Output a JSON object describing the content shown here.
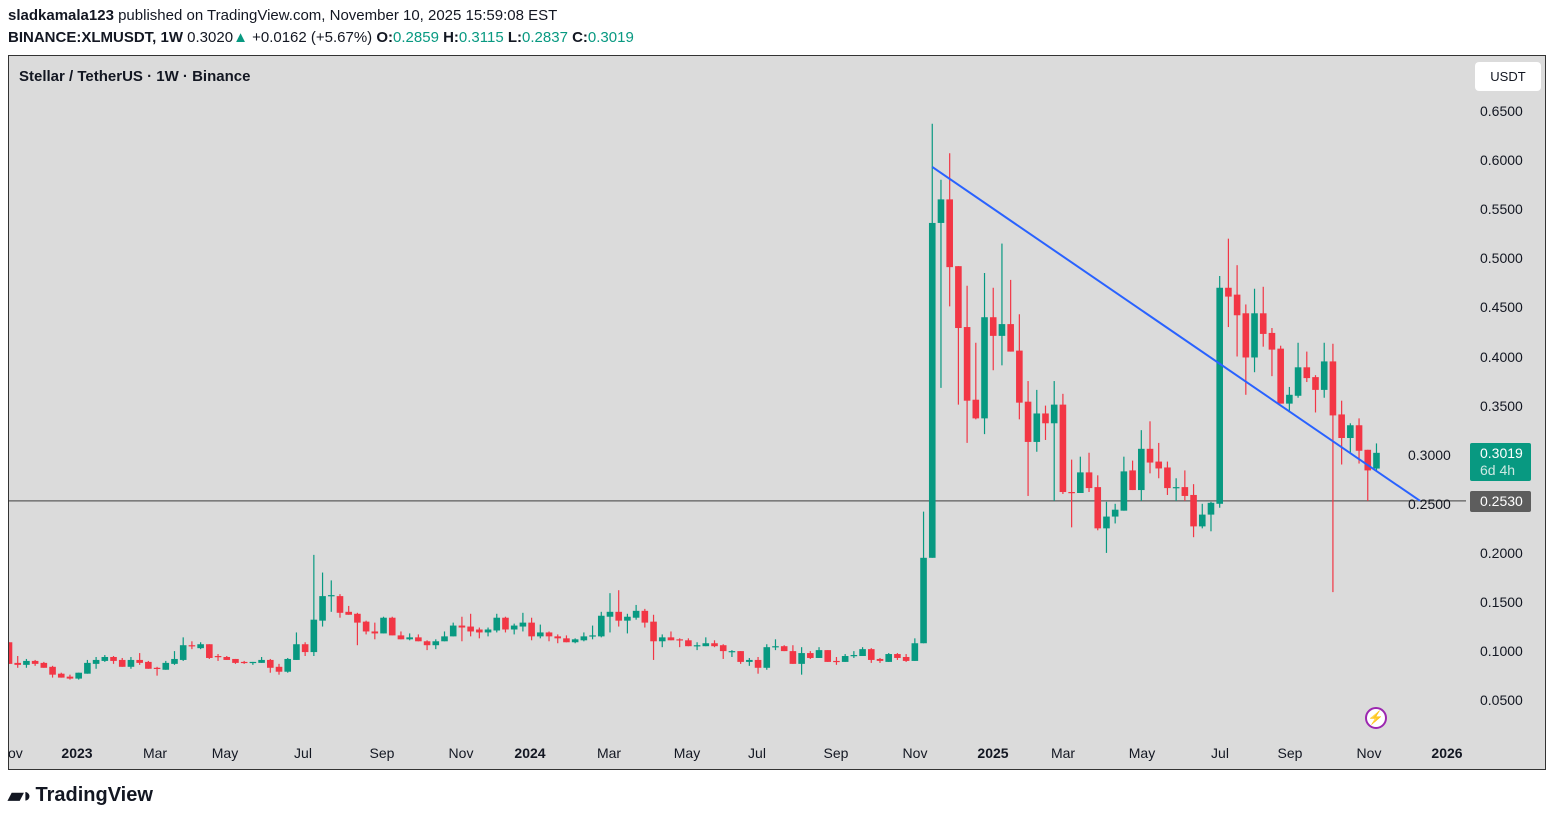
{
  "header": {
    "author": "sladkamala123",
    "published": "published on TradingView.com, November 10, 2025 15:59:08 EST",
    "symbol": "BINANCE:XLMUSDT, 1W",
    "price": "0.3020",
    "change": "+0.0162 (+5.67%)",
    "o_label": "O:",
    "o": "0.2859",
    "h_label": "H:",
    "h": "0.3115",
    "l_label": "L:",
    "l": "0.2837",
    "c_label": "C:",
    "c": "0.3019"
  },
  "chart": {
    "title": "Stellar / TetherUS · 1W · Binance",
    "currency_button": "USDT",
    "last_price": "0.3019",
    "countdown": "6d 4h",
    "hline_label": "0.2530",
    "logo": "TradingView",
    "colors": {
      "up": "#089981",
      "down": "#f23645",
      "trendline": "#2962ff",
      "background": "#dbdbdb",
      "hline": "#5d5d5d"
    }
  },
  "chart_data": {
    "type": "candlestick",
    "interval": "1W",
    "ylim": [
      0.02,
      0.68
    ],
    "y_ticks": [
      "0.6500",
      "0.6000",
      "0.5500",
      "0.5000",
      "0.4500",
      "0.4000",
      "0.3500",
      "0.3000",
      "0.2500",
      "0.2000",
      "0.1500",
      "0.1000",
      "0.0500"
    ],
    "x_ticks": [
      {
        "label": "ov",
        "year": false
      },
      {
        "label": "2023",
        "year": true
      },
      {
        "label": "Mar",
        "year": false
      },
      {
        "label": "May",
        "year": false
      },
      {
        "label": "Jul",
        "year": false
      },
      {
        "label": "Sep",
        "year": false
      },
      {
        "label": "Nov",
        "year": false
      },
      {
        "label": "2024",
        "year": true
      },
      {
        "label": "Mar",
        "year": false
      },
      {
        "label": "May",
        "year": false
      },
      {
        "label": "Jul",
        "year": false
      },
      {
        "label": "Sep",
        "year": false
      },
      {
        "label": "Nov",
        "year": false
      },
      {
        "label": "2025",
        "year": true
      },
      {
        "label": "Mar",
        "year": false
      },
      {
        "label": "May",
        "year": false
      },
      {
        "label": "Jul",
        "year": false
      },
      {
        "label": "Sep",
        "year": false
      },
      {
        "label": "Nov",
        "year": false
      },
      {
        "label": "2026",
        "year": true
      }
    ],
    "horizontal_line": 0.253,
    "trendline": {
      "from": {
        "date": "2024-11-18",
        "price": 0.593
      },
      "to": {
        "date": "2025-12-15",
        "price": 0.253
      }
    },
    "ohlc": [
      [
        0.109,
        0.109,
        0.087,
        0.087
      ],
      [
        0.088,
        0.095,
        0.083,
        0.086
      ],
      [
        0.086,
        0.092,
        0.083,
        0.09
      ],
      [
        0.09,
        0.091,
        0.085,
        0.087
      ],
      [
        0.088,
        0.089,
        0.083,
        0.083
      ],
      [
        0.084,
        0.085,
        0.073,
        0.076
      ],
      [
        0.077,
        0.078,
        0.073,
        0.073
      ],
      [
        0.074,
        0.076,
        0.071,
        0.072
      ],
      [
        0.072,
        0.078,
        0.071,
        0.078
      ],
      [
        0.077,
        0.091,
        0.077,
        0.088
      ],
      [
        0.087,
        0.094,
        0.082,
        0.091
      ],
      [
        0.09,
        0.096,
        0.089,
        0.094
      ],
      [
        0.094,
        0.095,
        0.087,
        0.09
      ],
      [
        0.091,
        0.093,
        0.084,
        0.084
      ],
      [
        0.084,
        0.094,
        0.082,
        0.091
      ],
      [
        0.091,
        0.098,
        0.086,
        0.088
      ],
      [
        0.089,
        0.09,
        0.082,
        0.082
      ],
      [
        0.083,
        0.084,
        0.075,
        0.082
      ],
      [
        0.081,
        0.09,
        0.081,
        0.088
      ],
      [
        0.087,
        0.1,
        0.086,
        0.092
      ],
      [
        0.091,
        0.114,
        0.09,
        0.106
      ],
      [
        0.106,
        0.11,
        0.102,
        0.105
      ],
      [
        0.103,
        0.109,
        0.102,
        0.107
      ],
      [
        0.107,
        0.107,
        0.092,
        0.093
      ],
      [
        0.095,
        0.097,
        0.09,
        0.094
      ],
      [
        0.094,
        0.095,
        0.091,
        0.091
      ],
      [
        0.092,
        0.092,
        0.087,
        0.088
      ],
      [
        0.089,
        0.09,
        0.087,
        0.088
      ],
      [
        0.088,
        0.089,
        0.086,
        0.089
      ],
      [
        0.088,
        0.094,
        0.088,
        0.091
      ],
      [
        0.091,
        0.092,
        0.078,
        0.083
      ],
      [
        0.084,
        0.087,
        0.076,
        0.079
      ],
      [
        0.079,
        0.093,
        0.078,
        0.092
      ],
      [
        0.091,
        0.119,
        0.091,
        0.107
      ],
      [
        0.107,
        0.109,
        0.095,
        0.099
      ],
      [
        0.099,
        0.198,
        0.095,
        0.132
      ],
      [
        0.131,
        0.18,
        0.125,
        0.156
      ],
      [
        0.156,
        0.172,
        0.14,
        0.157
      ],
      [
        0.156,
        0.158,
        0.134,
        0.139
      ],
      [
        0.14,
        0.146,
        0.137,
        0.137
      ],
      [
        0.138,
        0.139,
        0.106,
        0.129
      ],
      [
        0.13,
        0.131,
        0.117,
        0.12
      ],
      [
        0.12,
        0.129,
        0.112,
        0.118
      ],
      [
        0.118,
        0.135,
        0.118,
        0.134
      ],
      [
        0.134,
        0.135,
        0.116,
        0.116
      ],
      [
        0.116,
        0.12,
        0.112,
        0.112
      ],
      [
        0.112,
        0.118,
        0.111,
        0.114
      ],
      [
        0.114,
        0.117,
        0.11,
        0.11
      ],
      [
        0.11,
        0.111,
        0.101,
        0.106
      ],
      [
        0.106,
        0.112,
        0.102,
        0.11
      ],
      [
        0.11,
        0.12,
        0.11,
        0.115
      ],
      [
        0.115,
        0.129,
        0.115,
        0.126
      ],
      [
        0.126,
        0.135,
        0.11,
        0.124
      ],
      [
        0.125,
        0.138,
        0.115,
        0.12
      ],
      [
        0.122,
        0.124,
        0.113,
        0.119
      ],
      [
        0.119,
        0.124,
        0.115,
        0.122
      ],
      [
        0.121,
        0.138,
        0.119,
        0.134
      ],
      [
        0.134,
        0.135,
        0.119,
        0.122
      ],
      [
        0.122,
        0.128,
        0.117,
        0.126
      ],
      [
        0.125,
        0.139,
        0.12,
        0.129
      ],
      [
        0.129,
        0.134,
        0.111,
        0.115
      ],
      [
        0.115,
        0.127,
        0.113,
        0.119
      ],
      [
        0.119,
        0.12,
        0.11,
        0.115
      ],
      [
        0.115,
        0.117,
        0.108,
        0.113
      ],
      [
        0.113,
        0.116,
        0.109,
        0.109
      ],
      [
        0.109,
        0.113,
        0.108,
        0.112
      ],
      [
        0.111,
        0.119,
        0.11,
        0.115
      ],
      [
        0.116,
        0.126,
        0.112,
        0.116
      ],
      [
        0.115,
        0.14,
        0.114,
        0.136
      ],
      [
        0.135,
        0.159,
        0.119,
        0.14
      ],
      [
        0.14,
        0.162,
        0.125,
        0.131
      ],
      [
        0.131,
        0.138,
        0.118,
        0.135
      ],
      [
        0.134,
        0.147,
        0.132,
        0.141
      ],
      [
        0.141,
        0.143,
        0.124,
        0.129
      ],
      [
        0.13,
        0.137,
        0.091,
        0.11
      ],
      [
        0.11,
        0.117,
        0.104,
        0.114
      ],
      [
        0.114,
        0.12,
        0.111,
        0.111
      ],
      [
        0.112,
        0.113,
        0.104,
        0.111
      ],
      [
        0.111,
        0.113,
        0.105,
        0.105
      ],
      [
        0.105,
        0.109,
        0.101,
        0.106
      ],
      [
        0.105,
        0.114,
        0.105,
        0.108
      ],
      [
        0.108,
        0.111,
        0.104,
        0.105
      ],
      [
        0.106,
        0.107,
        0.092,
        0.1
      ],
      [
        0.1,
        0.101,
        0.094,
        0.1
      ],
      [
        0.1,
        0.1,
        0.087,
        0.089
      ],
      [
        0.089,
        0.093,
        0.085,
        0.091
      ],
      [
        0.091,
        0.094,
        0.077,
        0.083
      ],
      [
        0.083,
        0.107,
        0.081,
        0.104
      ],
      [
        0.104,
        0.112,
        0.101,
        0.105
      ],
      [
        0.105,
        0.106,
        0.1,
        0.1
      ],
      [
        0.1,
        0.106,
        0.087,
        0.087
      ],
      [
        0.087,
        0.104,
        0.076,
        0.098
      ],
      [
        0.098,
        0.1,
        0.092,
        0.093
      ],
      [
        0.093,
        0.104,
        0.093,
        0.101
      ],
      [
        0.101,
        0.101,
        0.089,
        0.089
      ],
      [
        0.09,
        0.094,
        0.086,
        0.089
      ],
      [
        0.089,
        0.097,
        0.089,
        0.095
      ],
      [
        0.095,
        0.1,
        0.093,
        0.096
      ],
      [
        0.095,
        0.104,
        0.095,
        0.102
      ],
      [
        0.102,
        0.103,
        0.088,
        0.091
      ],
      [
        0.092,
        0.093,
        0.088,
        0.09
      ],
      [
        0.089,
        0.098,
        0.089,
        0.097
      ],
      [
        0.097,
        0.098,
        0.091,
        0.093
      ],
      [
        0.094,
        0.097,
        0.089,
        0.09
      ],
      [
        0.09,
        0.113,
        0.09,
        0.108
      ],
      [
        0.108,
        0.242,
        0.108,
        0.195
      ],
      [
        0.195,
        0.637,
        0.195,
        0.536
      ],
      [
        0.536,
        0.58,
        0.368,
        0.56
      ],
      [
        0.56,
        0.607,
        0.451,
        0.491
      ],
      [
        0.492,
        0.492,
        0.351,
        0.429
      ],
      [
        0.43,
        0.472,
        0.312,
        0.355
      ],
      [
        0.356,
        0.414,
        0.336,
        0.337
      ],
      [
        0.337,
        0.485,
        0.321,
        0.44
      ],
      [
        0.44,
        0.47,
        0.386,
        0.421
      ],
      [
        0.421,
        0.515,
        0.391,
        0.433
      ],
      [
        0.433,
        0.478,
        0.405,
        0.405
      ],
      [
        0.406,
        0.443,
        0.336,
        0.353
      ],
      [
        0.354,
        0.375,
        0.258,
        0.313
      ],
      [
        0.313,
        0.366,
        0.303,
        0.342
      ],
      [
        0.342,
        0.35,
        0.315,
        0.332
      ],
      [
        0.332,
        0.375,
        0.253,
        0.351
      ],
      [
        0.351,
        0.362,
        0.26,
        0.262
      ],
      [
        0.262,
        0.295,
        0.226,
        0.261
      ],
      [
        0.261,
        0.298,
        0.261,
        0.282
      ],
      [
        0.282,
        0.302,
        0.262,
        0.266
      ],
      [
        0.267,
        0.279,
        0.223,
        0.225
      ],
      [
        0.225,
        0.252,
        0.2,
        0.237
      ],
      [
        0.237,
        0.25,
        0.23,
        0.244
      ],
      [
        0.243,
        0.298,
        0.243,
        0.283
      ],
      [
        0.284,
        0.294,
        0.264,
        0.264
      ],
      [
        0.264,
        0.325,
        0.253,
        0.306
      ],
      [
        0.306,
        0.334,
        0.281,
        0.292
      ],
      [
        0.293,
        0.312,
        0.276,
        0.286
      ],
      [
        0.287,
        0.293,
        0.259,
        0.266
      ],
      [
        0.267,
        0.276,
        0.253,
        0.267
      ],
      [
        0.267,
        0.284,
        0.253,
        0.258
      ],
      [
        0.259,
        0.27,
        0.216,
        0.227
      ],
      [
        0.227,
        0.25,
        0.225,
        0.239
      ],
      [
        0.239,
        0.252,
        0.222,
        0.251
      ],
      [
        0.25,
        0.482,
        0.246,
        0.47
      ],
      [
        0.47,
        0.52,
        0.43,
        0.461
      ],
      [
        0.463,
        0.493,
        0.4,
        0.442
      ],
      [
        0.444,
        0.453,
        0.361,
        0.399
      ],
      [
        0.399,
        0.469,
        0.384,
        0.444
      ],
      [
        0.444,
        0.471,
        0.41,
        0.423
      ],
      [
        0.424,
        0.429,
        0.38,
        0.407
      ],
      [
        0.408,
        0.411,
        0.352,
        0.352
      ],
      [
        0.352,
        0.369,
        0.343,
        0.361
      ],
      [
        0.36,
        0.414,
        0.358,
        0.389
      ],
      [
        0.389,
        0.405,
        0.374,
        0.378
      ],
      [
        0.379,
        0.381,
        0.343,
        0.366
      ],
      [
        0.366,
        0.414,
        0.358,
        0.395
      ],
      [
        0.395,
        0.413,
        0.16,
        0.34
      ],
      [
        0.341,
        0.355,
        0.29,
        0.317
      ],
      [
        0.317,
        0.332,
        0.302,
        0.33
      ],
      [
        0.33,
        0.337,
        0.291,
        0.304
      ],
      [
        0.305,
        0.305,
        0.253,
        0.284
      ],
      [
        0.2859,
        0.3115,
        0.2837,
        0.3019
      ]
    ]
  }
}
